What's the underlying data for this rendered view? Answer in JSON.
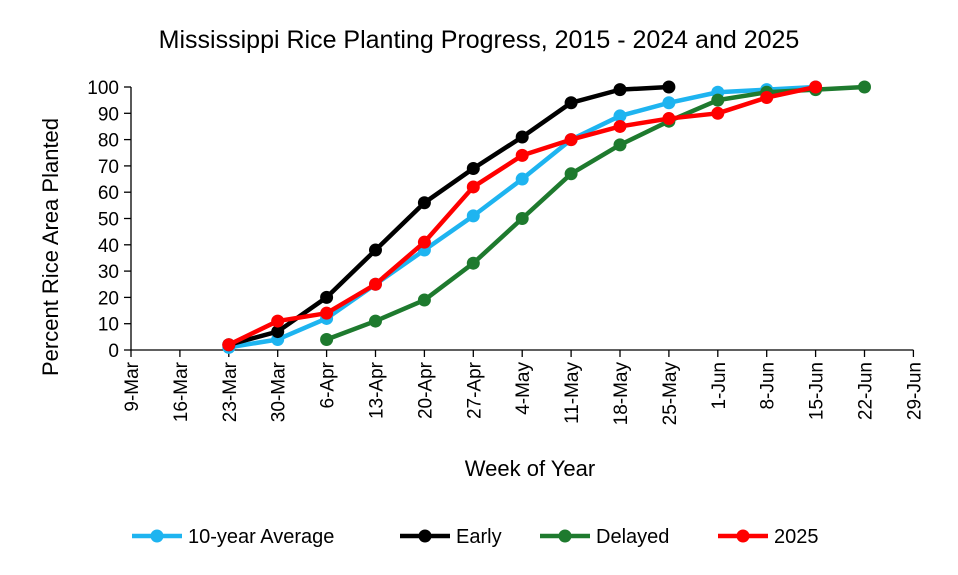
{
  "chart_data": {
    "type": "line",
    "title": "Mississippi Rice Planting  Progress, 2015 - 2024 and 2025",
    "xlabel": "Week of Year",
    "ylabel": "Percent Rice Area Planted",
    "ylim": [
      0,
      100
    ],
    "yticks": [
      0,
      10,
      20,
      30,
      40,
      50,
      60,
      70,
      80,
      90,
      100
    ],
    "categories": [
      "9-Mar",
      "16-Mar",
      "23-Mar",
      "30-Mar",
      "6-Apr",
      "13-Apr",
      "20-Apr",
      "27-Apr",
      "4-May",
      "11-May",
      "18-May",
      "25-May",
      "1-Jun",
      "8-Jun",
      "15-Jun",
      "22-Jun",
      "29-Jun"
    ],
    "grid": false,
    "legend_position": "bottom",
    "series": [
      {
        "name": "10-year Average",
        "color": "#1EB4F0",
        "values": [
          null,
          null,
          1,
          4,
          12,
          25,
          38,
          51,
          65,
          80,
          89,
          94,
          98,
          99,
          100,
          null,
          null
        ]
      },
      {
        "name": "Early",
        "color": "#000000",
        "values": [
          null,
          null,
          2,
          7,
          20,
          38,
          56,
          69,
          81,
          94,
          99,
          100,
          null,
          null,
          null,
          null,
          null
        ]
      },
      {
        "name": "Delayed",
        "color": "#1E7A2E",
        "values": [
          null,
          null,
          null,
          null,
          4,
          11,
          19,
          33,
          50,
          67,
          78,
          87,
          95,
          98,
          99,
          100,
          null
        ]
      },
      {
        "name": "2025",
        "color": "#FF0000",
        "values": [
          null,
          null,
          2,
          11,
          14,
          25,
          41,
          62,
          74,
          80,
          85,
          88,
          90,
          96,
          100,
          null,
          null
        ]
      }
    ]
  }
}
